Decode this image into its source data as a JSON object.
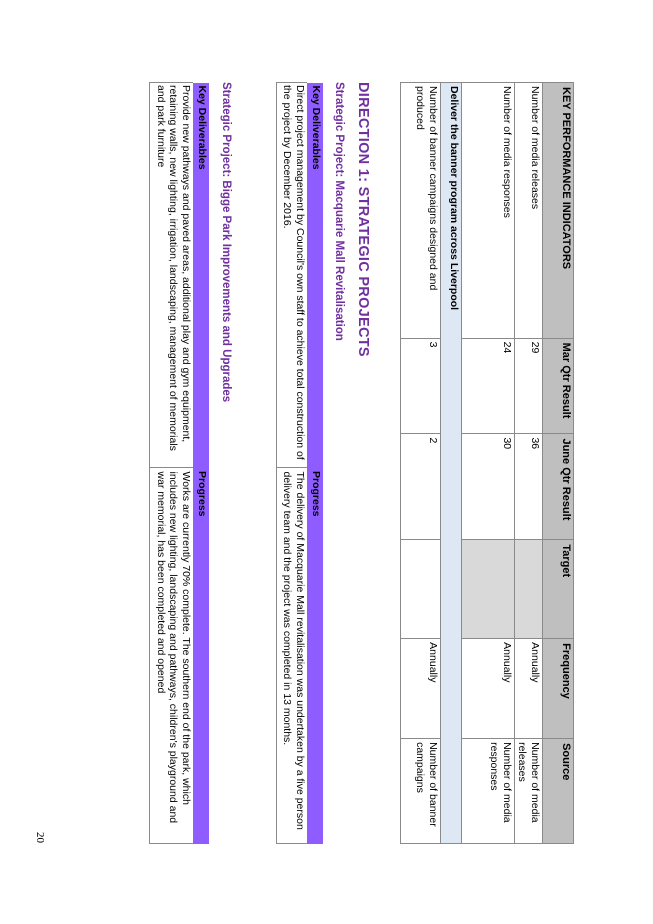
{
  "kpi_table": {
    "headers": [
      "KEY PERFORMANCE INDICATORS",
      "Mar Qtr Result",
      "June Qtr Result",
      "Target",
      "Frequency",
      "Source"
    ],
    "rows": [
      {
        "indicator": "Number of media releases",
        "mar": "29",
        "june": "36",
        "target": "",
        "frequency": "Annually",
        "source": "Number of media releases"
      },
      {
        "indicator": "Number of media responses",
        "mar": "24",
        "june": "30",
        "target": "",
        "frequency": "Annually",
        "source": "Number of media responses"
      }
    ],
    "section": "Deliver the banner program across Liverpool",
    "section_rows": [
      {
        "indicator": "Number of banner campaigns designed and produced",
        "mar": "3",
        "june": "2",
        "target": "",
        "frequency": "Annually",
        "source": "Number of banner campaigns"
      }
    ]
  },
  "direction_title": "DIRECTION 1: STRATEGIC PROJECTS",
  "project1": {
    "title": "Strategic Project: Macquarie Mall Revitalisation",
    "col1_header": "Key Deliverables",
    "col2_header": "Progress",
    "deliverable": "Direct project management by Council's own staff to achieve total construction of the project by December 2016.",
    "progress": "The delivery of Macquarie Mall revitalisation was undertaken by a five person delivery team and the project was completed in 13 months."
  },
  "project2": {
    "title": "Strategic Project: Bigge Park Improvements and Upgrades",
    "col1_header": "Key Deliverables",
    "col2_header": "Progress",
    "deliverable": "Provide new pathways and paved areas, additional play and gym equipment, retaining walls, new lighting, irrigation, landscaping, management of memorials and park furniture",
    "progress": "Works are currently 70% complete. The southern end of the park, which includes new lighting, landscaping and pathways, children's playground and war memorial, has been completed and opened"
  },
  "page_number": "20"
}
